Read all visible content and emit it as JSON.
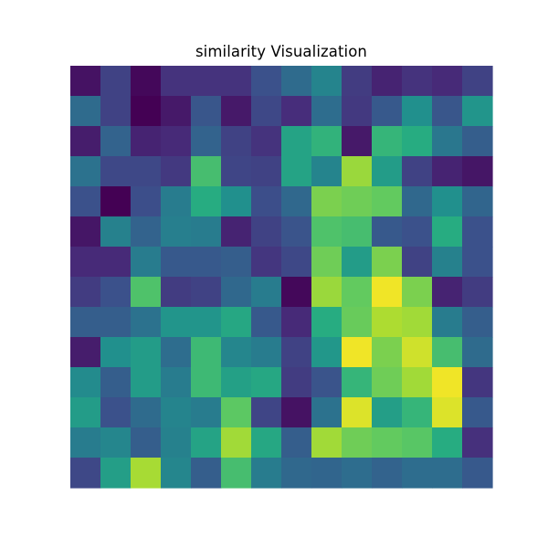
{
  "chart_data": {
    "type": "heatmap",
    "title": "similarity Visualization",
    "xlabel": "",
    "ylabel": "",
    "colormap": "viridis",
    "value_range": [
      0,
      1
    ],
    "axes_visible": false,
    "legend": "none",
    "rows": 14,
    "cols": 14,
    "values": [
      [
        0.05,
        0.2,
        0.02,
        0.15,
        0.15,
        0.15,
        0.25,
        0.35,
        0.45,
        0.18,
        0.1,
        0.15,
        0.12,
        0.2
      ],
      [
        0.35,
        0.2,
        0.0,
        0.07,
        0.27,
        0.07,
        0.22,
        0.13,
        0.36,
        0.17,
        0.28,
        0.5,
        0.27,
        0.52
      ],
      [
        0.08,
        0.32,
        0.1,
        0.12,
        0.32,
        0.2,
        0.15,
        0.58,
        0.65,
        0.07,
        0.66,
        0.62,
        0.4,
        0.3
      ],
      [
        0.38,
        0.22,
        0.22,
        0.17,
        0.7,
        0.21,
        0.2,
        0.58,
        0.45,
        0.85,
        0.55,
        0.2,
        0.1,
        0.06
      ],
      [
        0.25,
        0.0,
        0.24,
        0.42,
        0.62,
        0.5,
        0.24,
        0.34,
        0.8,
        0.78,
        0.76,
        0.34,
        0.5,
        0.33
      ],
      [
        0.06,
        0.44,
        0.32,
        0.43,
        0.42,
        0.1,
        0.2,
        0.26,
        0.72,
        0.7,
        0.28,
        0.25,
        0.62,
        0.25
      ],
      [
        0.12,
        0.12,
        0.42,
        0.28,
        0.28,
        0.3,
        0.16,
        0.22,
        0.78,
        0.55,
        0.8,
        0.2,
        0.44,
        0.25
      ],
      [
        0.18,
        0.25,
        0.72,
        0.18,
        0.2,
        0.34,
        0.42,
        0.02,
        0.85,
        0.76,
        0.98,
        0.8,
        0.1,
        0.18
      ],
      [
        0.3,
        0.3,
        0.38,
        0.52,
        0.52,
        0.6,
        0.28,
        0.12,
        0.62,
        0.77,
        0.88,
        0.86,
        0.42,
        0.3
      ],
      [
        0.08,
        0.5,
        0.55,
        0.36,
        0.68,
        0.46,
        0.42,
        0.2,
        0.53,
        0.98,
        0.8,
        0.93,
        0.7,
        0.35
      ],
      [
        0.48,
        0.3,
        0.55,
        0.42,
        0.68,
        0.57,
        0.6,
        0.18,
        0.26,
        0.66,
        0.78,
        0.86,
        0.98,
        0.16
      ],
      [
        0.55,
        0.25,
        0.35,
        0.45,
        0.42,
        0.75,
        0.21,
        0.05,
        0.38,
        0.95,
        0.56,
        0.66,
        0.95,
        0.28
      ],
      [
        0.42,
        0.46,
        0.3,
        0.44,
        0.58,
        0.86,
        0.6,
        0.3,
        0.86,
        0.78,
        0.76,
        0.74,
        0.62,
        0.14
      ],
      [
        0.22,
        0.56,
        0.87,
        0.46,
        0.3,
        0.7,
        0.42,
        0.34,
        0.33,
        0.36,
        0.32,
        0.36,
        0.36,
        0.28
      ]
    ]
  }
}
